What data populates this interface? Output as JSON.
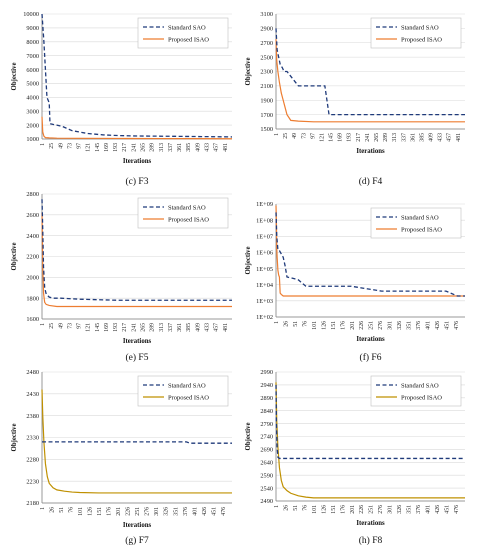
{
  "colors": {
    "sao": "#1F3A7A",
    "isao_orange": "#ED7D31",
    "isao_gold": "#BF9000",
    "grid": "#D9D9D9",
    "axis": "#7F7F7F"
  },
  "chart_data": [
    {
      "type": "line",
      "caption": "(c) F3",
      "xlabel": "Iterations",
      "ylabel": "Objective",
      "ylim": [
        1000,
        10000
      ],
      "yscale": "linear",
      "yticks": [
        "1000",
        "2000",
        "3000",
        "4000",
        "5000",
        "6000",
        "7000",
        "8000",
        "9000",
        "10000"
      ],
      "xticks": [
        "1",
        "25",
        "49",
        "73",
        "97",
        "121",
        "145",
        "169",
        "193",
        "217",
        "241",
        "265",
        "289",
        "313",
        "337",
        "361",
        "385",
        "409",
        "433",
        "457",
        "481"
      ],
      "legend": "top-right",
      "series": [
        {
          "name": "Standard SAO",
          "style": "dashed",
          "color": "#1F3A7A",
          "x": [
            1,
            6,
            8,
            12,
            14,
            20,
            22,
            30,
            40,
            55,
            80,
            120,
            160,
            200,
            240,
            320,
            400,
            500
          ],
          "y": [
            10000,
            8000,
            7000,
            5000,
            4000,
            3600,
            2100,
            2050,
            2000,
            1900,
            1600,
            1400,
            1300,
            1250,
            1220,
            1200,
            1180,
            1150
          ]
        },
        {
          "name": "Proposed ISAO",
          "style": "solid",
          "color": "#ED7D31",
          "x": [
            1,
            3,
            6,
            10,
            20,
            40,
            100,
            200,
            300,
            400,
            500
          ],
          "y": [
            2600,
            1500,
            1200,
            1100,
            1080,
            1060,
            1050,
            1040,
            1030,
            1025,
            1020
          ]
        }
      ]
    },
    {
      "type": "line",
      "caption": "(d) F4",
      "xlabel": "Iterations",
      "ylabel": "Objective",
      "ylim": [
        1500,
        3100
      ],
      "yscale": "linear",
      "yticks": [
        "1500",
        "1700",
        "1900",
        "2100",
        "2300",
        "2500",
        "2700",
        "2900",
        "3100"
      ],
      "xticks": [
        "1",
        "25",
        "49",
        "73",
        "97",
        "121",
        "145",
        "169",
        "193",
        "217",
        "241",
        "265",
        "289",
        "313",
        "337",
        "361",
        "385",
        "409",
        "433",
        "457",
        "481"
      ],
      "legend": "top-right",
      "series": [
        {
          "name": "Standard SAO",
          "style": "dashed",
          "color": "#1F3A7A",
          "x": [
            1,
            4,
            8,
            12,
            18,
            22,
            30,
            45,
            60,
            90,
            130,
            141,
            160,
            300,
            500
          ],
          "y": [
            2900,
            2600,
            2500,
            2400,
            2350,
            2300,
            2300,
            2200,
            2100,
            2100,
            2100,
            1700,
            1700,
            1700,
            1700
          ]
        },
        {
          "name": "Proposed ISAO",
          "style": "solid",
          "color": "#ED7D31",
          "x": [
            1,
            3,
            6,
            10,
            15,
            20,
            25,
            30,
            40,
            60,
            100,
            300,
            500
          ],
          "y": [
            2750,
            2450,
            2300,
            2150,
            2000,
            1900,
            1800,
            1700,
            1620,
            1610,
            1600,
            1600,
            1600
          ]
        }
      ]
    },
    {
      "type": "line",
      "caption": "(e) F5",
      "xlabel": "Iterations",
      "ylabel": "Objective",
      "ylim": [
        1600,
        2800
      ],
      "yscale": "linear",
      "yticks": [
        "1600",
        "1800",
        "2000",
        "2200",
        "2400",
        "2600",
        "2800"
      ],
      "xticks": [
        "1",
        "25",
        "49",
        "73",
        "97",
        "121",
        "145",
        "169",
        "193",
        "217",
        "241",
        "265",
        "289",
        "313",
        "337",
        "361",
        "385",
        "409",
        "433",
        "457",
        "481"
      ],
      "legend": "top-right",
      "series": [
        {
          "name": "Standard SAO",
          "style": "dashed",
          "color": "#1F3A7A",
          "x": [
            1,
            3,
            5,
            8,
            12,
            20,
            30,
            50,
            100,
            200,
            300,
            400,
            500
          ],
          "y": [
            2750,
            2450,
            2100,
            1900,
            1840,
            1810,
            1800,
            1800,
            1790,
            1780,
            1780,
            1780,
            1780
          ]
        },
        {
          "name": "Proposed ISAO",
          "style": "solid",
          "color": "#ED7D31",
          "x": [
            1,
            3,
            5,
            8,
            12,
            20,
            40,
            100,
            200,
            300,
            400,
            500
          ],
          "y": [
            2620,
            2100,
            1850,
            1760,
            1740,
            1730,
            1720,
            1720,
            1720,
            1720,
            1720,
            1720
          ]
        }
      ]
    },
    {
      "type": "line",
      "caption": "(f) F6",
      "xlabel": "Iterations",
      "ylabel": "Objective",
      "ylim": [
        100,
        1000000000
      ],
      "yscale": "log",
      "yticks": [
        "1E+02",
        "1E+03",
        "1E+04",
        "1E+05",
        "1E+06",
        "1E+07",
        "1E+08",
        "1E+09"
      ],
      "xticks": [
        "1",
        "26",
        "51",
        "76",
        "101",
        "126",
        "151",
        "176",
        "201",
        "226",
        "251",
        "276",
        "301",
        "326",
        "351",
        "376",
        "401",
        "426",
        "451",
        "476"
      ],
      "legend": "top-right",
      "series": [
        {
          "name": "Standard SAO",
          "style": "dashed",
          "color": "#1F3A7A",
          "x": [
            1,
            3,
            6,
            10,
            15,
            20,
            25,
            30,
            45,
            60,
            80,
            120,
            140,
            200,
            280,
            300,
            350,
            450,
            480,
            500
          ],
          "y": [
            300000000,
            10000000,
            1500000,
            1300000,
            800000,
            500000,
            150000,
            30000,
            25000,
            20000,
            8000,
            8000,
            8000,
            8000,
            4000,
            4000,
            4000,
            4000,
            2000,
            2000
          ]
        },
        {
          "name": "Proposed ISAO",
          "style": "solid",
          "color": "#ED7D31",
          "x": [
            1,
            2,
            3,
            4,
            6,
            8,
            10,
            12,
            15,
            20,
            30,
            60,
            200,
            500
          ],
          "y": [
            800000000,
            100000000,
            2000000,
            500000,
            80000,
            40000,
            30000,
            3000,
            2500,
            2000,
            2000,
            2000,
            2000,
            2000
          ]
        }
      ]
    },
    {
      "type": "line",
      "caption": "(g) F7",
      "xlabel": "Iterations",
      "ylabel": "Objective",
      "ylim": [
        2180,
        2480
      ],
      "yscale": "linear",
      "yticks": [
        "2180",
        "2230",
        "2280",
        "2330",
        "2380",
        "2430",
        "2480"
      ],
      "xticks": [
        "1",
        "26",
        "51",
        "76",
        "101",
        "126",
        "151",
        "176",
        "201",
        "226",
        "251",
        "276",
        "301",
        "326",
        "351",
        "376",
        "401",
        "426",
        "451",
        "476"
      ],
      "legend": "top-right",
      "series": [
        {
          "name": "Standard SAO",
          "style": "dashed",
          "color": "#1F3A7A",
          "x": [
            1,
            3,
            380,
            390,
            500
          ],
          "y": [
            2320,
            2320,
            2320,
            2317,
            2317
          ]
        },
        {
          "name": "Proposed ISAO",
          "style": "solid",
          "color": "#BF9000",
          "x": [
            1,
            3,
            6,
            10,
            15,
            20,
            30,
            40,
            60,
            80,
            100,
            150,
            200,
            300,
            400,
            500
          ],
          "y": [
            2440,
            2380,
            2320,
            2270,
            2240,
            2225,
            2215,
            2210,
            2207,
            2205,
            2204,
            2203,
            2203,
            2203,
            2203,
            2203
          ]
        }
      ]
    },
    {
      "type": "line",
      "caption": "(h) F8",
      "xlabel": "Iterations",
      "ylabel": "Objective",
      "ylim": [
        2490,
        2990
      ],
      "yscale": "linear",
      "yticks": [
        "2490",
        "2540",
        "2590",
        "2640",
        "2690",
        "2740",
        "2790",
        "2840",
        "2890",
        "2940",
        "2990"
      ],
      "xticks": [
        "1",
        "26",
        "51",
        "76",
        "101",
        "126",
        "151",
        "176",
        "201",
        "226",
        "251",
        "276",
        "301",
        "326",
        "351",
        "376",
        "401",
        "426",
        "451",
        "476"
      ],
      "legend": "top-right",
      "series": [
        {
          "name": "Standard SAO",
          "style": "dashed",
          "color": "#1F3A7A",
          "x": [
            1,
            2,
            4,
            6,
            10,
            500
          ],
          "y": [
            2940,
            2800,
            2700,
            2660,
            2655,
            2655
          ]
        },
        {
          "name": "Proposed ISAO",
          "style": "solid",
          "color": "#BF9000",
          "x": [
            1,
            3,
            6,
            10,
            15,
            20,
            30,
            40,
            60,
            80,
            100,
            200,
            300,
            500
          ],
          "y": [
            2950,
            2800,
            2700,
            2620,
            2570,
            2545,
            2530,
            2520,
            2510,
            2505,
            2502,
            2502,
            2502,
            2502
          ]
        }
      ]
    }
  ]
}
